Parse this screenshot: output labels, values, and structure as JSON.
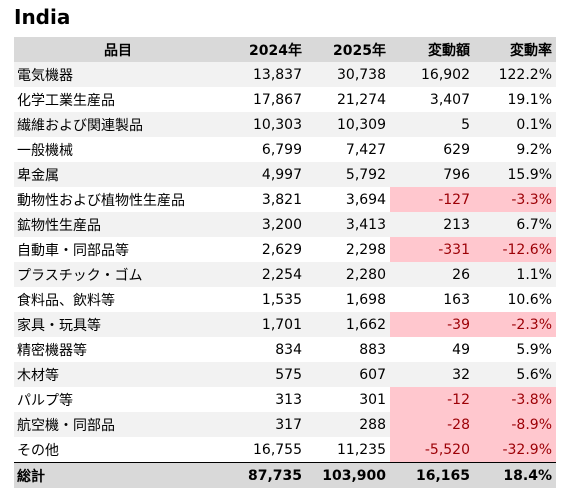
{
  "title": "India",
  "headers": [
    "品目",
    "2024年",
    "2025年",
    "変動額",
    "変動率"
  ],
  "rows": [
    {
      "name": "電気機器",
      "y2024": "13,837",
      "y2025": "30,738",
      "change": "16,902",
      "rate": "122.2%",
      "negative": false
    },
    {
      "name": "化学工業生産品",
      "y2024": "17,867",
      "y2025": "21,274",
      "change": "3,407",
      "rate": "19.1%",
      "negative": false
    },
    {
      "name": "繊維および関連製品",
      "y2024": "10,303",
      "y2025": "10,309",
      "change": "5",
      "rate": "0.1%",
      "negative": false
    },
    {
      "name": "一般機械",
      "y2024": "6,799",
      "y2025": "7,427",
      "change": "629",
      "rate": "9.2%",
      "negative": false
    },
    {
      "name": "卑金属",
      "y2024": "4,997",
      "y2025": "5,792",
      "change": "796",
      "rate": "15.9%",
      "negative": false
    },
    {
      "name": "動物性および植物性生産品",
      "y2024": "3,821",
      "y2025": "3,694",
      "change": "-127",
      "rate": "-3.3%",
      "negative": true
    },
    {
      "name": "鉱物性生産品",
      "y2024": "3,200",
      "y2025": "3,413",
      "change": "213",
      "rate": "6.7%",
      "negative": false
    },
    {
      "name": "自動車・同部品等",
      "y2024": "2,629",
      "y2025": "2,298",
      "change": "-331",
      "rate": "-12.6%",
      "negative": true
    },
    {
      "name": "プラスチック・ゴム",
      "y2024": "2,254",
      "y2025": "2,280",
      "change": "26",
      "rate": "1.1%",
      "negative": false
    },
    {
      "name": "食料品、飲料等",
      "y2024": "1,535",
      "y2025": "1,698",
      "change": "163",
      "rate": "10.6%",
      "negative": false
    },
    {
      "name": "家具・玩具等",
      "y2024": "1,701",
      "y2025": "1,662",
      "change": "-39",
      "rate": "-2.3%",
      "negative": true
    },
    {
      "name": "精密機器等",
      "y2024": "834",
      "y2025": "883",
      "change": "49",
      "rate": "5.9%",
      "negative": false
    },
    {
      "name": "木材等",
      "y2024": "575",
      "y2025": "607",
      "change": "32",
      "rate": "5.6%",
      "negative": false
    },
    {
      "name": "パルプ等",
      "y2024": "313",
      "y2025": "301",
      "change": "-12",
      "rate": "-3.8%",
      "negative": true
    },
    {
      "name": "航空機・同部品",
      "y2024": "317",
      "y2025": "288",
      "change": "-28",
      "rate": "-8.9%",
      "negative": true
    },
    {
      "name": "その他",
      "y2024": "16,755",
      "y2025": "11,235",
      "change": "-5,520",
      "rate": "-32.9%",
      "negative": true
    }
  ],
  "total": {
    "name": "総計",
    "y2024": "87,735",
    "y2025": "103,900",
    "change": "16,165",
    "rate": "18.4%"
  },
  "colors": {
    "header_bg": "#d9d9d9",
    "stripe_bg": "#f2f2f2",
    "negative_bg": "#ffc7ce",
    "negative_text": "#9c0006"
  }
}
